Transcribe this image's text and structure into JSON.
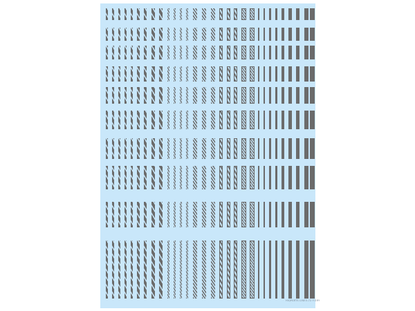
{
  "sheet": {
    "background_color": "#c9e7fa",
    "stripe_color": "#6b6b6b",
    "row_count": 10,
    "groups": [
      {
        "style": "diagonal-dashed",
        "count": 9
      },
      {
        "style": "fine-diagonal",
        "count": 4
      },
      {
        "style": "heavy-diagonal",
        "count": 3
      },
      {
        "style": "outlined-dashed",
        "count": 3
      },
      {
        "style": "outlined-diagonal",
        "count": 2
      },
      {
        "style": "solid",
        "count": 9
      }
    ],
    "label": "HIQPARTS LINE3-72 F.GRY"
  }
}
